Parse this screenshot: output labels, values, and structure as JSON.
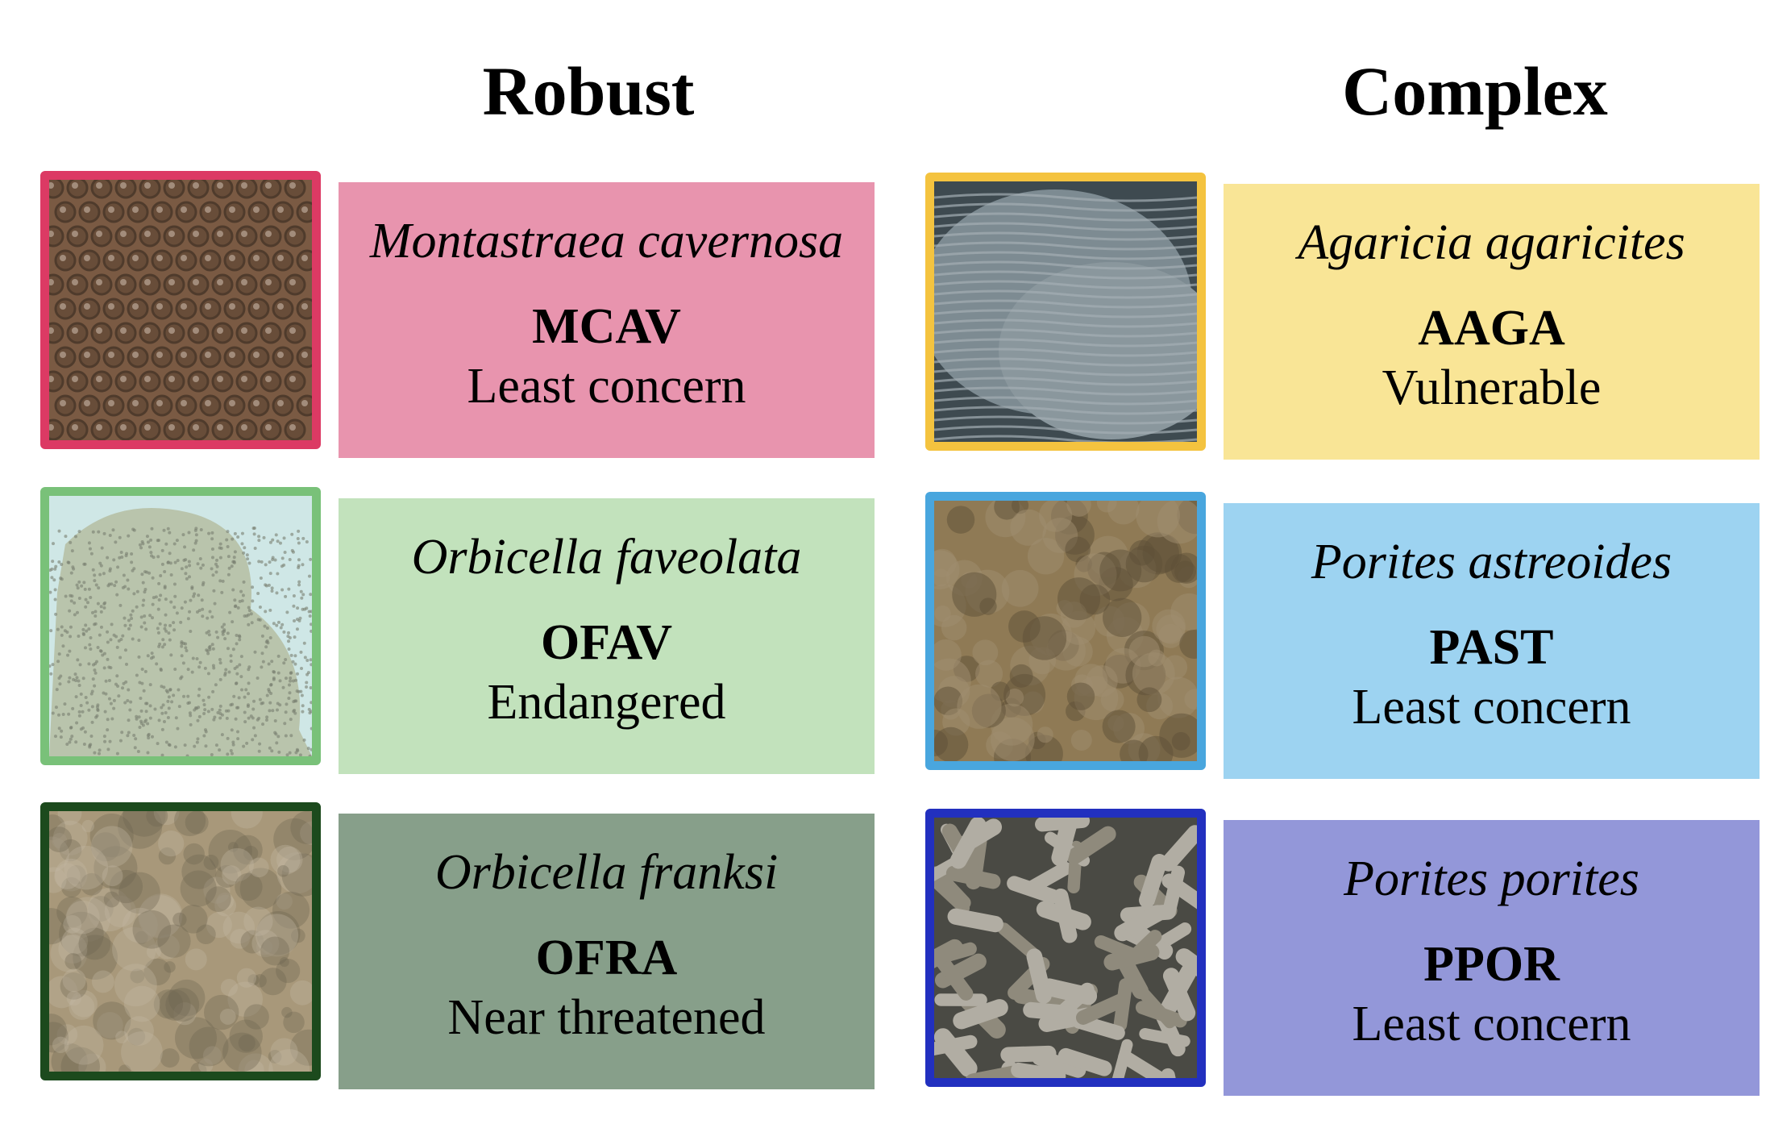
{
  "groups": [
    {
      "heading": "Robust",
      "corals": [
        {
          "species": "Montastraea cavernosa",
          "code": "MCAV",
          "status": "Least concern",
          "border": "#dc3a64",
          "panel": "#e894ae",
          "tone": "#7a5a43",
          "pattern": "polyps"
        },
        {
          "species": "Orbicella faveolata",
          "code": "OFAV",
          "status": "Endangered",
          "border": "#79c179",
          "panel": "#c2e2bc",
          "tone": "#b9c4ac",
          "pattern": "dots"
        },
        {
          "species": "Orbicella franksi",
          "code": "OFRA",
          "status": "Near threatened",
          "border": "#1c4a1d",
          "panel": "#879f8a",
          "tone": "#a8987a",
          "pattern": "mottled"
        }
      ]
    },
    {
      "heading": "Complex",
      "corals": [
        {
          "species": "Agaricia agaricites",
          "code": "AAGA",
          "status": "Vulnerable",
          "border": "#f4c33f",
          "panel": "#f9e596",
          "tone": "#7d8b92",
          "pattern": "ridges"
        },
        {
          "species": "Porites astreoides",
          "code": "PAST",
          "status": "Least concern",
          "border": "#49a6de",
          "panel": "#9dd3f1",
          "tone": "#8f7a55",
          "pattern": "lumps"
        },
        {
          "species": "Porites porites",
          "code": "PPOR",
          "status": "Least concern",
          "border": "#2230bf",
          "panel": "#9397d9",
          "tone": "#8f8a7c",
          "pattern": "branches"
        }
      ]
    }
  ]
}
